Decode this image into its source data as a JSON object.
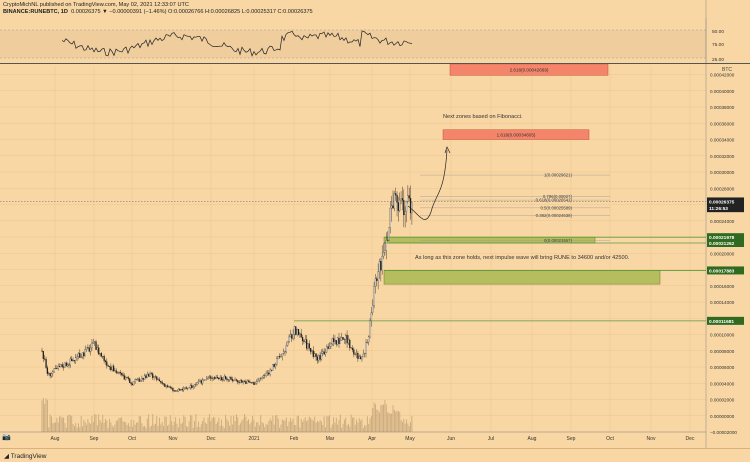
{
  "header": {
    "line1": "CryptoMichNL published on TradingView.com, May 02, 2021 12:33:07 UTC",
    "symbol": "BINANCE:RUNEBTC, 1D",
    "ohlc": "0.00026375 ▼ −0.00000391 (−1.46%) O:0.00026766 H:0.00026825 L:0.00025317 C:0.00026375"
  },
  "footer": {
    "brand": "TradingView"
  },
  "colors": {
    "background": "#f9d7a4",
    "candle": "#1a1a1a",
    "green_zone": "#b5bd5f",
    "red_zone": "#f4846a",
    "level_line": "#5a9a3a"
  },
  "chart_data": {
    "type": "candlestick",
    "currency_label": "BTC",
    "x_ticks": [
      "Aug",
      "Sep",
      "Oct",
      "Nov",
      "Dec",
      "2021",
      "Feb",
      "Mar",
      "Apr",
      "May",
      "Jun",
      "Jul",
      "Aug",
      "Sep",
      "Oct",
      "Nov",
      "Dec"
    ],
    "y_ticks": [
      "0.00042000",
      "0.00040000",
      "0.00038000",
      "0.00036000",
      "0.00034000",
      "0.00032000",
      "0.00030000",
      "0.00028000",
      "0.00026000",
      "0.00024000",
      "0.00022000",
      "0.00020000",
      "0.00018000",
      "0.00016000",
      "0.00014000",
      "0.00012000",
      "0.00010000",
      "0.00008000",
      "0.00006000",
      "0.00004000",
      "0.00002000",
      "0.00000000",
      "−0.00002000"
    ],
    "y_range": [
      -2e-05,
      0.00044
    ],
    "rsi_ticks": [
      "75.00",
      "50.00",
      "25.00"
    ],
    "price_badges": [
      {
        "label": "0.00026375",
        "value": 0.00026375,
        "style": "dark"
      },
      {
        "label": "11:26:53",
        "value": 0.0002555,
        "style": "dark"
      },
      {
        "label": "0.00021978",
        "value": 0.00021978,
        "style": "green"
      },
      {
        "label": "0.00021262",
        "value": 0.00021262,
        "style": "green"
      },
      {
        "label": "0.00017883",
        "value": 0.00017883,
        "style": "green"
      },
      {
        "label": "0.00011681",
        "value": 0.00011681,
        "style": "green"
      }
    ],
    "fib_levels": [
      {
        "label": "2.618(0.00042669)",
        "value": 0.00042669
      },
      {
        "label": "1.618(0.00034605)",
        "value": 0.00034605
      },
      {
        "label": "1(0.00029621)",
        "value": 0.00029621
      },
      {
        "label": "0.618(0.00026541)",
        "value": 0.00026541
      },
      {
        "label": "0.786(0.00027)",
        "value": 0.00027
      },
      {
        "label": "0.5(0.00025589)",
        "value": 0.00025589
      },
      {
        "label": "0.382(0.00024638)",
        "value": 0.00024638
      },
      {
        "label": "0(0.00021557)",
        "value": 0.00021557
      }
    ],
    "annotations": [
      "Next zones based on Fibonacci.",
      "As long as this zone holds, next impulse wave will bring RUNE to 34600 and/or 42500."
    ]
  }
}
